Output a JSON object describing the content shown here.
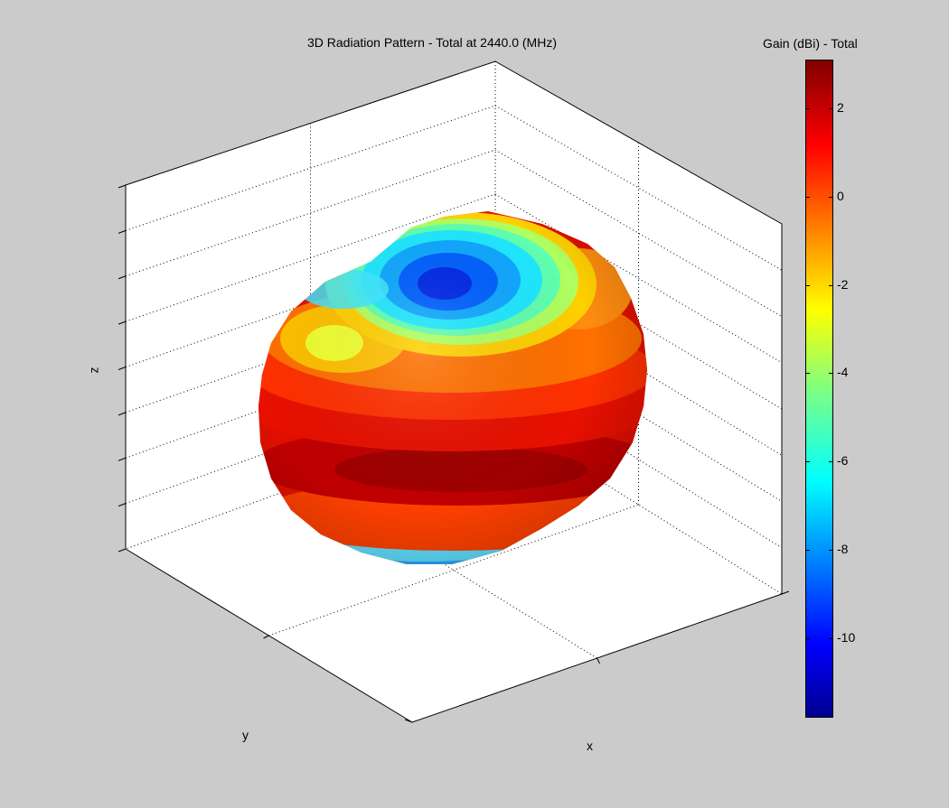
{
  "chart_data": {
    "type": "surface",
    "title": "3D Radiation Pattern  - Total at 2440.0 (MHz)",
    "xlabel": "x",
    "ylabel": "y",
    "zlabel": "z",
    "grid": true,
    "colormap": "jet",
    "colorbar": {
      "title": "Gain (dBi) - Total",
      "range": [
        -11.8,
        3.1
      ],
      "ticks": [
        2,
        0,
        -2,
        -4,
        -6,
        -8,
        -10
      ],
      "tick_labels": [
        "2",
        "0",
        "-2",
        "-4",
        "-6",
        "-8",
        "-10"
      ],
      "placement": "right"
    },
    "pattern": {
      "max_gain_dbi": 3.1,
      "min_gain_dbi": -11.8,
      "null_direction": "+z (top)",
      "peak_direction": "equatorial band (xy-plane)",
      "secondary_null": "-z (bottom)"
    }
  },
  "colors": {
    "figure_background": "#cbcbcb",
    "axes_background": "#ffffff"
  }
}
